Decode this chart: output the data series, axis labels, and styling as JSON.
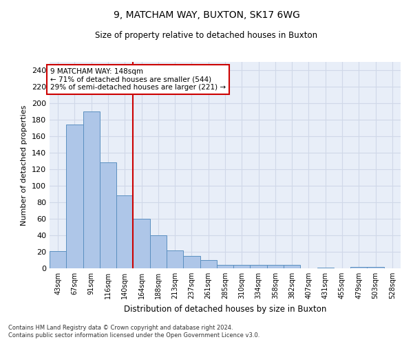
{
  "title1": "9, MATCHAM WAY, BUXTON, SK17 6WG",
  "title2": "Size of property relative to detached houses in Buxton",
  "xlabel": "Distribution of detached houses by size in Buxton",
  "ylabel": "Number of detached properties",
  "categories": [
    "43sqm",
    "67sqm",
    "91sqm",
    "116sqm",
    "140sqm",
    "164sqm",
    "188sqm",
    "213sqm",
    "237sqm",
    "261sqm",
    "285sqm",
    "310sqm",
    "334sqm",
    "358sqm",
    "382sqm",
    "407sqm",
    "431sqm",
    "455sqm",
    "479sqm",
    "503sqm",
    "528sqm"
  ],
  "values": [
    21,
    174,
    190,
    128,
    88,
    60,
    40,
    22,
    15,
    10,
    4,
    4,
    4,
    4,
    4,
    0,
    1,
    0,
    2,
    2,
    0
  ],
  "bar_color": "#aec6e8",
  "bar_edge_color": "#5a8fc0",
  "grid_color": "#d0d8e8",
  "background_color": "#ffffff",
  "annotation_text": "9 MATCHAM WAY: 148sqm\n← 71% of detached houses are smaller (544)\n29% of semi-detached houses are larger (221) →",
  "vline_x": 4.5,
  "vline_color": "#cc0000",
  "annotation_box_edge_color": "#cc0000",
  "footer1": "Contains HM Land Registry data © Crown copyright and database right 2024.",
  "footer2": "Contains public sector information licensed under the Open Government Licence v3.0.",
  "ylim": [
    0,
    250
  ],
  "yticks": [
    0,
    20,
    40,
    60,
    80,
    100,
    120,
    140,
    160,
    180,
    200,
    220,
    240
  ]
}
